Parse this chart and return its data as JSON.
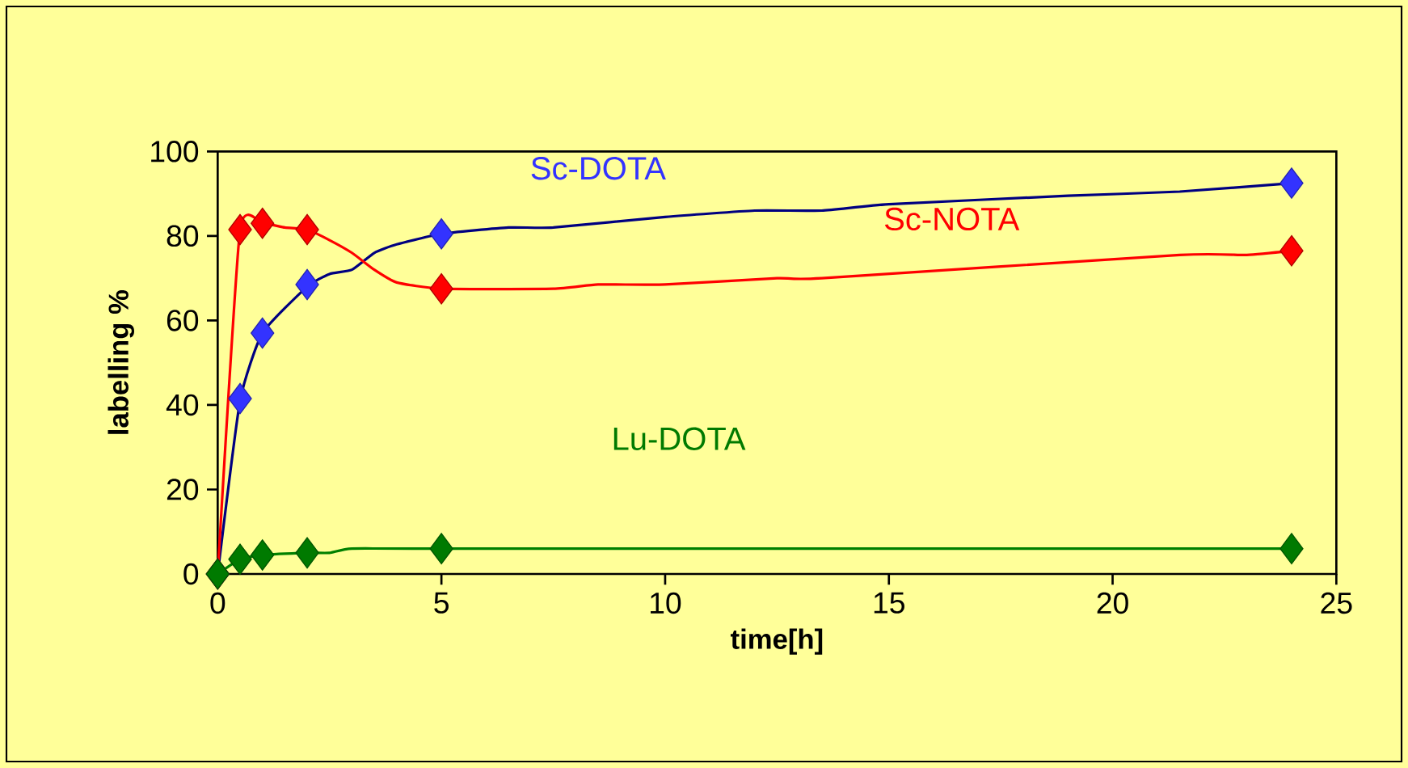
{
  "chart_data": {
    "type": "line",
    "xlabel": "time[h]",
    "ylabel": "labelling %",
    "xlim": [
      0,
      25
    ],
    "xticks": [
      0,
      5,
      10,
      15,
      20,
      25
    ],
    "ylim": [
      0,
      100
    ],
    "yticks": [
      0,
      20,
      40,
      60,
      80,
      100
    ],
    "grid": false,
    "legend": false,
    "series": [
      {
        "marker": "none",
        "color": "#000080",
        "x": [
          0,
          0.5,
          1,
          2,
          2.5,
          3,
          3.5,
          4,
          5,
          6.5,
          7.5,
          10,
          12,
          13.5,
          15,
          19,
          21.5,
          24
        ],
        "values": [
          0,
          41,
          57,
          68,
          71,
          72,
          76,
          78,
          80.5,
          82,
          82,
          84.5,
          86,
          86,
          87.5,
          89.5,
          90.5,
          92.5
        ]
      },
      {
        "marker": "none",
        "color": "#ff0000",
        "x": [
          0,
          0.5,
          1,
          1.5,
          2,
          2.5,
          3,
          3.5,
          4,
          5,
          7.5,
          8.5,
          10,
          12.5,
          13.5,
          21.5,
          23,
          24
        ],
        "values": [
          0,
          81.5,
          83,
          82,
          81.5,
          79,
          76,
          72,
          69,
          67.5,
          67.5,
          68.5,
          68.5,
          70,
          70,
          75.5,
          75.5,
          76.5
        ]
      },
      {
        "marker": "none",
        "color": "#008000",
        "x": [
          0,
          0.5,
          1,
          2,
          2.5,
          3,
          5,
          24
        ],
        "values": [
          0,
          3.5,
          4.5,
          5,
          5,
          6,
          6,
          6
        ]
      },
      {
        "type": "scatter",
        "marker": "diamond",
        "name": "Sc-DOTA",
        "color": "#3333ff",
        "x": [
          0,
          0.5,
          1,
          2,
          5,
          24
        ],
        "values": [
          0,
          41.5,
          57,
          68.5,
          80.5,
          92.5
        ]
      },
      {
        "type": "scatter",
        "marker": "diamond",
        "name": "Sc-NOTA",
        "color": "#ff0000",
        "x": [
          0,
          0.5,
          1,
          2,
          5,
          24
        ],
        "values": [
          0,
          81.5,
          83,
          81.5,
          67.5,
          76.5
        ]
      },
      {
        "type": "scatter",
        "marker": "diamond",
        "name": "Lu-DOTA",
        "color": "#007a00",
        "x": [
          0,
          0.5,
          1,
          2,
          5,
          24
        ],
        "values": [
          0,
          3.5,
          4.5,
          5,
          6,
          6
        ]
      }
    ]
  }
}
